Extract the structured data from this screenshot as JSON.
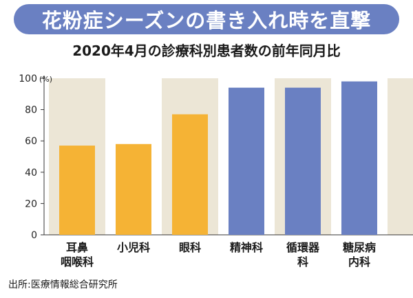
{
  "banner": {
    "text": "花粉症シーズンの書き入れ時を直撃"
  },
  "source": "出所:医療情報総合研究所",
  "colors": {
    "banner": "#6a80c2",
    "bar_orange": "#f5b335",
    "bar_blue": "#6a80c2",
    "band": "#ece6d6"
  },
  "chart_data": {
    "type": "bar",
    "title": "2020年4月の診療科別患者数の前年同月比",
    "y_unit": "(%)",
    "ylim": [
      0,
      100
    ],
    "yticks": [
      0,
      20,
      40,
      60,
      80,
      100
    ],
    "grid": false,
    "categories": [
      [
        "耳鼻",
        "咽喉科"
      ],
      [
        "小児科"
      ],
      [
        "眼科"
      ],
      [
        "精神科"
      ],
      [
        "循環器",
        "科"
      ],
      [
        "糖尿病",
        "内科"
      ]
    ],
    "values": [
      57,
      58,
      77,
      94,
      94,
      98
    ],
    "bar_colors": [
      "#f5b335",
      "#f5b335",
      "#f5b335",
      "#6a80c2",
      "#6a80c2",
      "#6a80c2"
    ]
  }
}
